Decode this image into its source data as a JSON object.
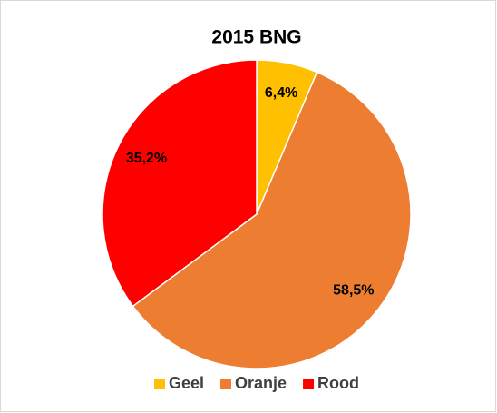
{
  "chart_data": {
    "type": "pie",
    "title": "2015 BNG",
    "categories": [
      "Geel",
      "Oranje",
      "Rood"
    ],
    "values": [
      6.4,
      58.5,
      35.2
    ],
    "value_labels": [
      "6,4%",
      "58,5%",
      "35,2%"
    ],
    "colors": [
      "#FFC000",
      "#ED7D31",
      "#FF0000"
    ],
    "legend": "bottom"
  }
}
